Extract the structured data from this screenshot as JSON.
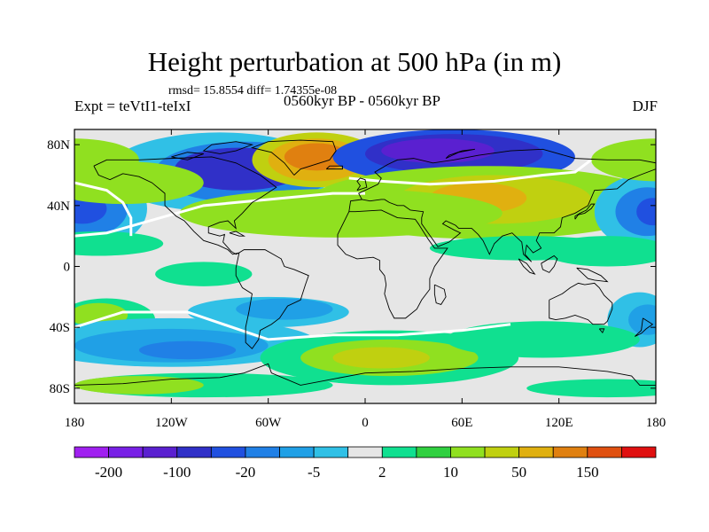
{
  "title": "Height perturbation at 500 hPa (in m)",
  "stats": "rmsd= 15.8554 diff= 1.74355e-08",
  "experiment": "Expt = teVtI1-teIxI",
  "period": "0560kyr BP - 0560kyr BP",
  "season": "DJF",
  "map": {
    "projection": "cylindrical-equidistant",
    "lon_range": [
      -180,
      180
    ],
    "lat_range": [
      -90,
      90
    ],
    "y_ticks": [
      {
        "lat": 80,
        "label": "80N"
      },
      {
        "lat": 40,
        "label": "40N"
      },
      {
        "lat": 0,
        "label": "0"
      },
      {
        "lat": -40,
        "label": "40S"
      },
      {
        "lat": -80,
        "label": "80S"
      }
    ],
    "x_ticks": [
      {
        "lon": -180,
        "label": "180"
      },
      {
        "lon": -120,
        "label": "120W"
      },
      {
        "lon": -60,
        "label": "60W"
      },
      {
        "lon": 0,
        "label": "0"
      },
      {
        "lon": 60,
        "label": "60E"
      },
      {
        "lon": 120,
        "label": "120E"
      },
      {
        "lon": 180,
        "label": "180"
      }
    ],
    "background_color": "#e6e6e6"
  },
  "colorbar": {
    "colors": [
      "#a020f0",
      "#7820e6",
      "#5a20d0",
      "#3030c8",
      "#2050e0",
      "#2080e6",
      "#20a0e6",
      "#30c0e6",
      "#e6e6e6",
      "#10e090",
      "#30d040",
      "#90e020",
      "#c0d010",
      "#e0b010",
      "#e08010",
      "#e05010",
      "#e01010"
    ],
    "labels": [
      {
        "after_box": 1,
        "text": "-200"
      },
      {
        "after_box": 3,
        "text": "-100"
      },
      {
        "after_box": 5,
        "text": "-20"
      },
      {
        "after_box": 7,
        "text": "-5"
      },
      {
        "after_box": 9,
        "text": "2"
      },
      {
        "after_box": 11,
        "text": "10"
      },
      {
        "after_box": 13,
        "text": "50"
      },
      {
        "after_box": 15,
        "text": "150"
      }
    ]
  },
  "field_blobs": [
    {
      "lon": -90,
      "lat": 62,
      "rx": 70,
      "ry": 26,
      "color": "#30c0e6"
    },
    {
      "lon": -75,
      "lat": 62,
      "rx": 55,
      "ry": 20,
      "color": "#2080e6"
    },
    {
      "lon": -78,
      "lat": 64,
      "rx": 40,
      "ry": 14,
      "color": "#3030c8"
    },
    {
      "lon": -30,
      "lat": 70,
      "rx": 40,
      "ry": 18,
      "color": "#c0d010"
    },
    {
      "lon": -30,
      "lat": 70,
      "rx": 30,
      "ry": 14,
      "color": "#e0b010"
    },
    {
      "lon": -30,
      "lat": 72,
      "rx": 20,
      "ry": 9,
      "color": "#e08010"
    },
    {
      "lon": 55,
      "lat": 72,
      "rx": 75,
      "ry": 18,
      "color": "#2050e0"
    },
    {
      "lon": 55,
      "lat": 74,
      "rx": 55,
      "ry": 13,
      "color": "#3030c8"
    },
    {
      "lon": 45,
      "lat": 76,
      "rx": 35,
      "ry": 8,
      "color": "#5a20d0"
    },
    {
      "lon": 75,
      "lat": 42,
      "rx": 110,
      "ry": 24,
      "color": "#90e020"
    },
    {
      "lon": 80,
      "lat": 44,
      "rx": 60,
      "ry": 16,
      "color": "#c0d010"
    },
    {
      "lon": 70,
      "lat": 45,
      "rx": 30,
      "ry": 10,
      "color": "#e0b010"
    },
    {
      "lon": -15,
      "lat": 35,
      "rx": 100,
      "ry": 16,
      "color": "#90e020"
    },
    {
      "lon": -170,
      "lat": 38,
      "rx": 35,
      "ry": 26,
      "color": "#30c0e6"
    },
    {
      "lon": -172,
      "lat": 38,
      "rx": 25,
      "ry": 18,
      "color": "#2080e6"
    },
    {
      "lon": -175,
      "lat": 38,
      "rx": 15,
      "ry": 10,
      "color": "#2050e0"
    },
    {
      "lon": 172,
      "lat": 36,
      "rx": 30,
      "ry": 24,
      "color": "#30c0e6"
    },
    {
      "lon": 175,
      "lat": 36,
      "rx": 20,
      "ry": 16,
      "color": "#2080e6"
    },
    {
      "lon": 178,
      "lat": 36,
      "rx": 10,
      "ry": 9,
      "color": "#2050e0"
    },
    {
      "lon": -180,
      "lat": 70,
      "rx": 40,
      "ry": 14,
      "color": "#90e020"
    },
    {
      "lon": 180,
      "lat": 70,
      "rx": 40,
      "ry": 14,
      "color": "#90e020"
    },
    {
      "lon": -150,
      "lat": 55,
      "rx": 50,
      "ry": 14,
      "color": "#90e020"
    },
    {
      "lon": -165,
      "lat": 15,
      "rx": 40,
      "ry": 8,
      "color": "#10e090"
    },
    {
      "lon": 100,
      "lat": 12,
      "rx": 60,
      "ry": 8,
      "color": "#10e090"
    },
    {
      "lon": 150,
      "lat": 10,
      "rx": 40,
      "ry": 10,
      "color": "#10e090"
    },
    {
      "lon": -100,
      "lat": -5,
      "rx": 30,
      "ry": 8,
      "color": "#10e090"
    },
    {
      "lon": -60,
      "lat": -30,
      "rx": 50,
      "ry": 10,
      "color": "#30c0e6"
    },
    {
      "lon": -50,
      "lat": -28,
      "rx": 30,
      "ry": 7,
      "color": "#20a0e6"
    },
    {
      "lon": -160,
      "lat": -35,
      "rx": 30,
      "ry": 14,
      "color": "#10e090"
    },
    {
      "lon": -165,
      "lat": -32,
      "rx": 18,
      "ry": 8,
      "color": "#90e020"
    },
    {
      "lon": 170,
      "lat": -35,
      "rx": 20,
      "ry": 18,
      "color": "#30c0e6"
    },
    {
      "lon": 175,
      "lat": -35,
      "rx": 12,
      "ry": 10,
      "color": "#20a0e6"
    },
    {
      "lon": -120,
      "lat": -50,
      "rx": 90,
      "ry": 16,
      "color": "#30c0e6"
    },
    {
      "lon": -120,
      "lat": -52,
      "rx": 60,
      "ry": 11,
      "color": "#20a0e6"
    },
    {
      "lon": -110,
      "lat": -55,
      "rx": 30,
      "ry": 6,
      "color": "#2080e6"
    },
    {
      "lon": 15,
      "lat": -60,
      "rx": 80,
      "ry": 18,
      "color": "#10e090"
    },
    {
      "lon": 15,
      "lat": -60,
      "rx": 55,
      "ry": 12,
      "color": "#90e020"
    },
    {
      "lon": 10,
      "lat": -60,
      "rx": 30,
      "ry": 7,
      "color": "#c0d010"
    },
    {
      "lon": 110,
      "lat": -48,
      "rx": 60,
      "ry": 12,
      "color": "#10e090"
    },
    {
      "lon": -100,
      "lat": -78,
      "rx": 80,
      "ry": 8,
      "color": "#10e090"
    },
    {
      "lon": -140,
      "lat": -78,
      "rx": 40,
      "ry": 6,
      "color": "#90e020"
    },
    {
      "lon": 150,
      "lat": -80,
      "rx": 50,
      "ry": 6,
      "color": "#10e090"
    }
  ],
  "white_contours": [
    [
      [
        -180,
        55
      ],
      [
        -160,
        50
      ],
      [
        -150,
        42
      ],
      [
        -145,
        32
      ],
      [
        -145,
        20
      ]
    ],
    [
      [
        -180,
        20
      ],
      [
        -160,
        22
      ],
      [
        -140,
        28
      ],
      [
        -100,
        40
      ],
      [
        -60,
        44
      ],
      [
        -20,
        48
      ],
      [
        0,
        48
      ]
    ],
    [
      [
        -10,
        58
      ],
      [
        10,
        56
      ],
      [
        40,
        54
      ],
      [
        80,
        56
      ],
      [
        110,
        60
      ],
      [
        130,
        62
      ],
      [
        140,
        70
      ]
    ],
    [
      [
        -180,
        -40
      ],
      [
        -150,
        -30
      ],
      [
        -110,
        -30
      ],
      [
        -60,
        -48
      ],
      [
        -20,
        -45
      ],
      [
        20,
        -45
      ],
      [
        60,
        -42
      ],
      [
        90,
        -38
      ]
    ]
  ],
  "coastlines": [
    [
      [
        -168,
        66
      ],
      [
        -160,
        70
      ],
      [
        -140,
        70
      ],
      [
        -120,
        71
      ],
      [
        -95,
        72
      ],
      [
        -80,
        68
      ],
      [
        -65,
        60
      ],
      [
        -55,
        52
      ],
      [
        -65,
        45
      ],
      [
        -70,
        42
      ],
      [
        -76,
        35
      ],
      [
        -81,
        30
      ],
      [
        -80,
        25
      ],
      [
        -85,
        30
      ],
      [
        -90,
        29
      ],
      [
        -97,
        26
      ],
      [
        -97,
        22
      ],
      [
        -90,
        20
      ],
      [
        -87,
        21
      ],
      [
        -88,
        16
      ],
      [
        -83,
        10
      ],
      [
        -80,
        8
      ],
      [
        -78,
        9
      ],
      [
        -82,
        8
      ],
      [
        -85,
        11
      ],
      [
        -91,
        14
      ],
      [
        -100,
        17
      ],
      [
        -106,
        23
      ],
      [
        -112,
        30
      ],
      [
        -117,
        33
      ],
      [
        -124,
        40
      ],
      [
        -124,
        48
      ],
      [
        -132,
        55
      ],
      [
        -140,
        59
      ],
      [
        -150,
        61
      ],
      [
        -158,
        57
      ],
      [
        -165,
        60
      ],
      [
        -168,
        66
      ]
    ],
    [
      [
        -44,
        60
      ],
      [
        -40,
        64
      ],
      [
        -22,
        70
      ],
      [
        -18,
        76
      ],
      [
        -20,
        82
      ],
      [
        -40,
        83
      ],
      [
        -60,
        82
      ],
      [
        -70,
        78
      ],
      [
        -58,
        75
      ],
      [
        -50,
        68
      ],
      [
        -44,
        60
      ]
    ],
    [
      [
        -78,
        9
      ],
      [
        -75,
        11
      ],
      [
        -62,
        11
      ],
      [
        -52,
        5
      ],
      [
        -50,
        0
      ],
      [
        -44,
        -2
      ],
      [
        -35,
        -6
      ],
      [
        -37,
        -12
      ],
      [
        -40,
        -22
      ],
      [
        -48,
        -26
      ],
      [
        -53,
        -34
      ],
      [
        -58,
        -38
      ],
      [
        -65,
        -42
      ],
      [
        -66,
        -48
      ],
      [
        -70,
        -54
      ],
      [
        -74,
        -50
      ],
      [
        -74,
        -40
      ],
      [
        -72,
        -30
      ],
      [
        -70,
        -18
      ],
      [
        -76,
        -14
      ],
      [
        -80,
        -6
      ],
      [
        -80,
        -1
      ],
      [
        -78,
        9
      ]
    ],
    [
      [
        -10,
        36
      ],
      [
        -17,
        21
      ],
      [
        -17,
        14
      ],
      [
        -12,
        8
      ],
      [
        -5,
        5
      ],
      [
        5,
        6
      ],
      [
        9,
        4
      ],
      [
        9,
        -2
      ],
      [
        12,
        -6
      ],
      [
        13,
        -12
      ],
      [
        12,
        -18
      ],
      [
        15,
        -28
      ],
      [
        18,
        -34
      ],
      [
        25,
        -34
      ],
      [
        32,
        -28
      ],
      [
        35,
        -22
      ],
      [
        40,
        -15
      ],
      [
        40,
        -8
      ],
      [
        43,
        0
      ],
      [
        51,
        12
      ],
      [
        43,
        12
      ],
      [
        39,
        18
      ],
      [
        33,
        28
      ],
      [
        31,
        31
      ],
      [
        20,
        32
      ],
      [
        10,
        37
      ],
      [
        -6,
        36
      ],
      [
        -10,
        36
      ]
    ],
    [
      [
        -10,
        36
      ],
      [
        -9,
        43
      ],
      [
        -2,
        44
      ],
      [
        -4,
        48
      ],
      [
        2,
        51
      ],
      [
        8,
        54
      ],
      [
        10,
        58
      ],
      [
        6,
        62
      ],
      [
        14,
        67
      ],
      [
        20,
        70
      ],
      [
        30,
        71
      ],
      [
        42,
        68
      ],
      [
        55,
        70
      ],
      [
        70,
        73
      ],
      [
        90,
        76
      ],
      [
        110,
        77
      ],
      [
        130,
        71
      ],
      [
        150,
        70
      ],
      [
        170,
        70
      ],
      [
        180,
        68
      ],
      [
        180,
        64
      ],
      [
        170,
        60
      ],
      [
        163,
        57
      ],
      [
        156,
        51
      ],
      [
        142,
        50
      ],
      [
        138,
        40
      ],
      [
        130,
        35
      ],
      [
        122,
        32
      ],
      [
        121,
        26
      ],
      [
        117,
        22
      ],
      [
        108,
        22
      ],
      [
        106,
        17
      ],
      [
        109,
        12
      ],
      [
        104,
        9
      ],
      [
        100,
        14
      ],
      [
        99,
        8
      ],
      [
        103,
        3
      ],
      [
        98,
        8
      ],
      [
        97,
        16
      ],
      [
        91,
        22
      ],
      [
        85,
        20
      ],
      [
        80,
        15
      ],
      [
        77,
        8
      ],
      [
        73,
        17
      ],
      [
        70,
        21
      ],
      [
        66,
        25
      ],
      [
        58,
        25
      ],
      [
        56,
        27
      ],
      [
        50,
        30
      ],
      [
        48,
        28
      ],
      [
        55,
        24
      ],
      [
        59,
        22
      ],
      [
        52,
        16
      ],
      [
        45,
        13
      ],
      [
        43,
        16
      ],
      [
        35,
        28
      ],
      [
        35,
        32
      ],
      [
        36,
        36
      ],
      [
        28,
        37
      ],
      [
        24,
        40
      ],
      [
        20,
        40
      ],
      [
        15,
        42
      ],
      [
        12,
        44
      ],
      [
        10,
        44
      ],
      [
        3,
        43
      ],
      [
        -2,
        44
      ],
      [
        -9,
        43
      ],
      [
        -10,
        36
      ]
    ],
    [
      [
        -5,
        50
      ],
      [
        -3,
        53
      ],
      [
        -5,
        56
      ],
      [
        -3,
        58
      ],
      [
        0,
        57
      ],
      [
        1,
        52
      ],
      [
        -5,
        50
      ]
    ],
    [
      [
        -24,
        64
      ],
      [
        -22,
        66
      ],
      [
        -14,
        66
      ],
      [
        -14,
        64
      ],
      [
        -24,
        64
      ]
    ],
    [
      [
        114,
        -22
      ],
      [
        114,
        -34
      ],
      [
        118,
        -35
      ],
      [
        124,
        -34
      ],
      [
        130,
        -32
      ],
      [
        138,
        -35
      ],
      [
        141,
        -38
      ],
      [
        148,
        -38
      ],
      [
        150,
        -36
      ],
      [
        153,
        -28
      ],
      [
        153,
        -24
      ],
      [
        148,
        -19
      ],
      [
        145,
        -14
      ],
      [
        142,
        -11
      ],
      [
        136,
        -12
      ],
      [
        132,
        -11
      ],
      [
        127,
        -14
      ],
      [
        122,
        -18
      ],
      [
        114,
        -22
      ]
    ],
    [
      [
        145,
        -41
      ],
      [
        148,
        -41
      ],
      [
        147,
        -43.5
      ],
      [
        145,
        -41
      ]
    ],
    [
      [
        172,
        -34
      ],
      [
        178,
        -38
      ],
      [
        174,
        -41
      ],
      [
        171,
        -44
      ],
      [
        167,
        -46
      ],
      [
        171,
        -42
      ],
      [
        172,
        -34
      ]
    ],
    [
      [
        130,
        31
      ],
      [
        132,
        34
      ],
      [
        136,
        35
      ],
      [
        140,
        38
      ],
      [
        142,
        41
      ],
      [
        140,
        41
      ],
      [
        137,
        37
      ],
      [
        133,
        35
      ],
      [
        130,
        33
      ],
      [
        130,
        31
      ]
    ],
    [
      [
        43,
        -12
      ],
      [
        49,
        -15
      ],
      [
        50,
        -20
      ],
      [
        47,
        -25
      ],
      [
        44,
        -24
      ],
      [
        43,
        -18
      ],
      [
        43,
        -12
      ]
    ],
    [
      [
        95,
        5
      ],
      [
        100,
        2
      ],
      [
        105,
        -5
      ],
      [
        102,
        -4
      ],
      [
        98,
        0
      ],
      [
        95,
        5
      ]
    ],
    [
      [
        109,
        2
      ],
      [
        117,
        7
      ],
      [
        119,
        5
      ],
      [
        117,
        0
      ],
      [
        114,
        -4
      ],
      [
        110,
        -2
      ],
      [
        109,
        2
      ]
    ],
    [
      [
        131,
        -1
      ],
      [
        138,
        -2
      ],
      [
        146,
        -6
      ],
      [
        150,
        -10
      ],
      [
        142,
        -9
      ],
      [
        138,
        -8
      ],
      [
        131,
        -1
      ]
    ],
    [
      [
        -84,
        22
      ],
      [
        -80,
        23
      ],
      [
        -75,
        20
      ],
      [
        -78,
        20
      ],
      [
        -84,
        22
      ]
    ],
    [
      [
        -180,
        -78
      ],
      [
        -150,
        -77
      ],
      [
        -120,
        -74
      ],
      [
        -90,
        -73
      ],
      [
        -75,
        -70
      ],
      [
        -60,
        -64
      ],
      [
        -58,
        -70
      ],
      [
        -40,
        -78
      ],
      [
        -20,
        -74
      ],
      [
        0,
        -70
      ],
      [
        30,
        -69
      ],
      [
        60,
        -67
      ],
      [
        90,
        -66
      ],
      [
        120,
        -66
      ],
      [
        150,
        -69
      ],
      [
        165,
        -72
      ],
      [
        170,
        -78
      ],
      [
        180,
        -78
      ]
    ],
    [
      [
        -90,
        74
      ],
      [
        -80,
        76
      ],
      [
        -70,
        80
      ],
      [
        -80,
        82
      ],
      [
        -95,
        80
      ],
      [
        -100,
        76
      ],
      [
        -90,
        74
      ]
    ],
    [
      [
        -120,
        72
      ],
      [
        -110,
        75
      ],
      [
        -100,
        74
      ],
      [
        -110,
        70
      ],
      [
        -120,
        72
      ]
    ],
    [
      [
        50,
        71
      ],
      [
        58,
        75
      ],
      [
        68,
        77
      ],
      [
        60,
        76
      ],
      [
        52,
        73
      ],
      [
        50,
        71
      ]
    ]
  ]
}
